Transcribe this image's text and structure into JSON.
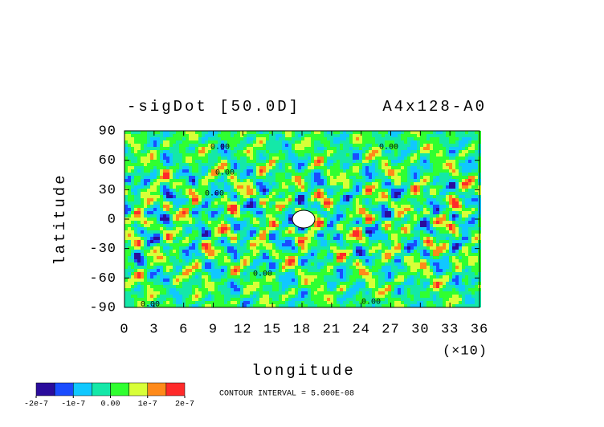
{
  "chart_data": {
    "type": "contour",
    "title": "-sigDot [50.0D]",
    "subtitle": "A4x128-A0",
    "x_label": "longitude",
    "x_multiplier": "(×10)",
    "y_label": "latitude",
    "xlim": [
      0,
      36
    ],
    "xticks": [
      0,
      3,
      6,
      9,
      12,
      15,
      18,
      21,
      24,
      27,
      30,
      33,
      36
    ],
    "ylim": [
      -90,
      90
    ],
    "yticks": [
      -90,
      -60,
      -30,
      0,
      30,
      60,
      90
    ],
    "contour_labels": [
      "0.00",
      "0.00",
      "0.00",
      "0.00",
      "0.00",
      "0.00",
      "0.00"
    ],
    "note": "CONTOUR INTERVAL = 5.000E-08",
    "colorbar": {
      "lim": [
        -2e-07,
        2e-07
      ],
      "colors": [
        "#2a0c9c",
        "#1a4cff",
        "#10c8ff",
        "#14e8a8",
        "#30ff30",
        "#d8ff38",
        "#ff8a1a",
        "#ff2a2a"
      ],
      "ticks": [
        {
          "value": -2e-07,
          "label": "-2e-7"
        },
        {
          "value": -1e-07,
          "label": "-1e-7"
        },
        {
          "value": 0,
          "label": "0.00"
        },
        {
          "value": 1e-07,
          "label": "1e-7"
        },
        {
          "value": 2e-07,
          "label": "2e-7"
        }
      ]
    }
  }
}
